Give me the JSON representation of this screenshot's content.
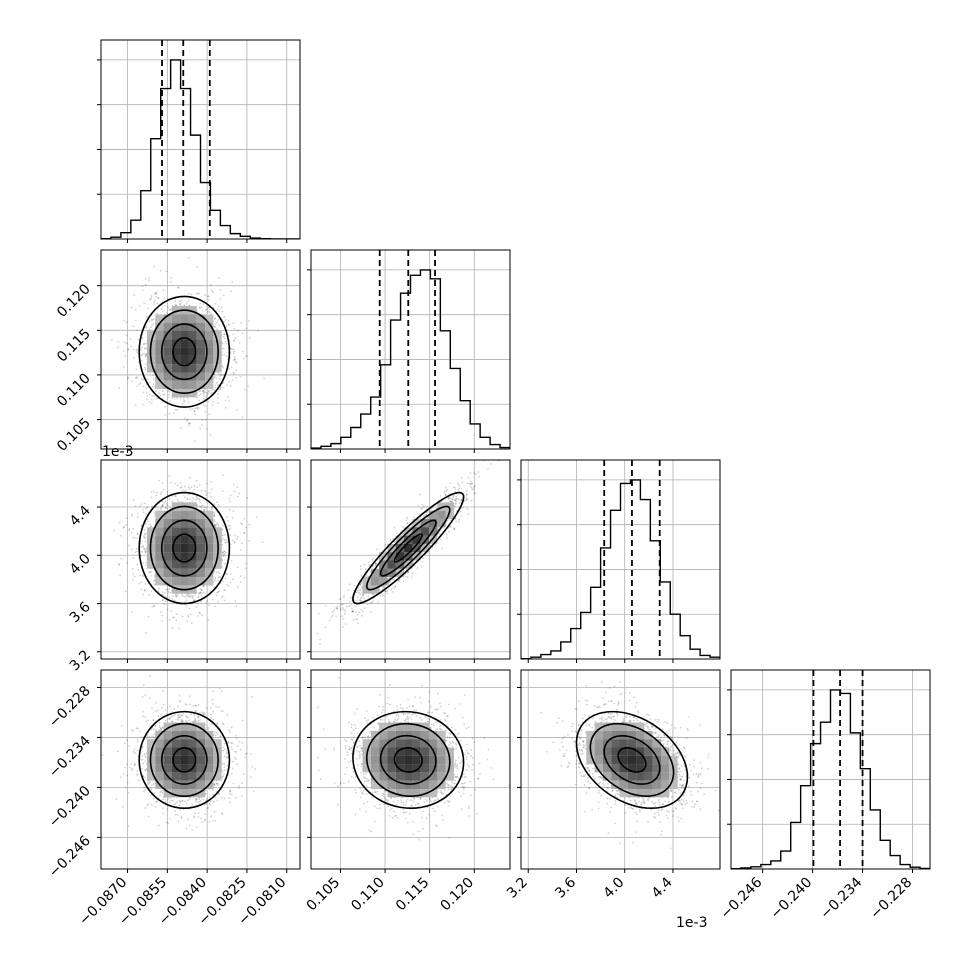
{
  "chart_data": {
    "type": "corner",
    "parameters": [
      "",
      "",
      "",
      ""
    ],
    "offset_text": {
      "p2": "1e-3"
    },
    "ranges": [
      [
        -0.088,
        -0.0805
      ],
      [
        0.1017,
        0.124
      ],
      [
        3.14,
        4.79
      ],
      [
        -0.2498,
        -0.2259
      ]
    ],
    "ticks": [
      {
        "values": [
          -0.087,
          -0.0855,
          -0.084,
          -0.0825,
          -0.081
        ],
        "labels": [
          "−0.0870",
          "−0.0855",
          "−0.0840",
          "−0.0825",
          "−0.0810"
        ]
      },
      {
        "values": [
          0.105,
          0.11,
          0.115,
          0.12
        ],
        "labels": [
          "0.105",
          "0.110",
          "0.115",
          "0.120"
        ]
      },
      {
        "values": [
          3.2,
          3.6,
          4.0,
          4.4
        ],
        "labels": [
          "3.2",
          "3.6",
          "4.0",
          "4.4"
        ]
      },
      {
        "values": [
          -0.246,
          -0.24,
          -0.234,
          -0.228
        ],
        "labels": [
          "−0.246",
          "−0.240",
          "−0.234",
          "−0.228"
        ]
      }
    ],
    "quantiles": [
      [
        -0.0857,
        -0.0849,
        -0.0839
      ],
      [
        0.1094,
        0.1126,
        0.1156
      ],
      [
        3.83,
        4.06,
        4.29
      ],
      [
        -0.2399,
        -0.2367,
        -0.234
      ]
    ],
    "histograms": [
      {
        "bins": [
          -0.088,
          -0.0805
        ],
        "counts": [
          0.2,
          1.0,
          3.5,
          10.5,
          27.0,
          56.0,
          84.0,
          100.0,
          84.0,
          58.0,
          31.5,
          16.0,
          7.5,
          3.0,
          1.5,
          0.5,
          0.2,
          0.0,
          0.0,
          0.0
        ]
      },
      {
        "bins": [
          0.1017,
          0.124
        ],
        "counts": [
          0.5,
          1.5,
          3.0,
          6.5,
          12.0,
          19.5,
          29.0,
          47.0,
          72.0,
          87.0,
          97.0,
          100.0,
          95.0,
          66.0,
          45.0,
          27.0,
          14.0,
          6.5,
          2.5,
          0.8
        ]
      },
      {
        "bins": [
          3.14,
          4.79
        ],
        "counts": [
          0.2,
          1.0,
          2.5,
          4.5,
          9.5,
          17.0,
          26.0,
          40.0,
          62.0,
          83.0,
          98.0,
          100.0,
          89.0,
          66.0,
          43.0,
          25.0,
          13.0,
          5.5,
          2.0,
          1.0
        ]
      },
      {
        "bins": [
          -0.2498,
          -0.2259
        ],
        "counts": [
          0.2,
          0.6,
          1.2,
          2.5,
          4.5,
          10.0,
          26.0,
          46.5,
          70.0,
          82.0,
          100.0,
          98.0,
          76.0,
          56.0,
          33.0,
          16.0,
          7.5,
          2.5,
          1.0,
          0.3
        ]
      }
    ],
    "distribution": {
      "means": [
        -0.08486,
        0.1126,
        4.06,
        -0.2367
      ],
      "stds": [
        0.00085,
        0.0031,
        0.23,
        0.0029
      ],
      "correlations": [
        [
          1.0,
          0.0,
          0.0,
          0.0
        ],
        [
          0.0,
          1.0,
          0.92,
          -0.05
        ],
        [
          0.0,
          0.92,
          1.0,
          -0.35
        ],
        [
          0.0,
          -0.05,
          -0.35,
          1.0
        ]
      ]
    },
    "contour_levels": [
      0.5,
      1.0,
      1.5,
      2.0
    ],
    "grid": true
  }
}
